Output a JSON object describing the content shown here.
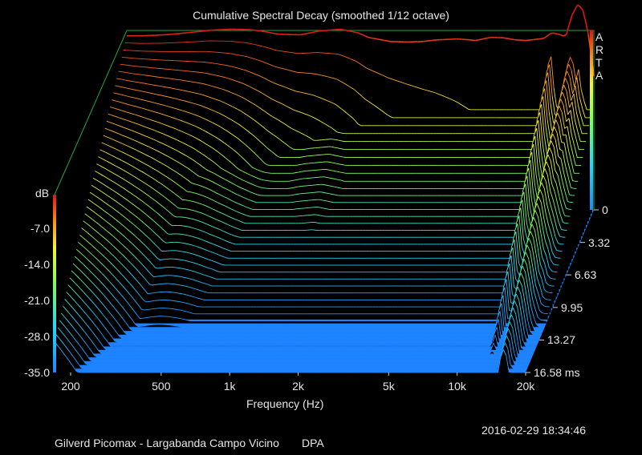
{
  "chart_data": {
    "type": "area",
    "title": "Cumulative Spectral Decay (smoothed 1/12 octave)",
    "xlabel": "Frequency (Hz)",
    "zlabel": "dB",
    "x_scale": "log",
    "x_range_hz": [
      170,
      20000
    ],
    "x_ticks": [
      "200",
      "500",
      "1k",
      "2k",
      "5k",
      "10k",
      "20k"
    ],
    "x_tick_values": [
      200,
      500,
      1000,
      2000,
      5000,
      10000,
      20000
    ],
    "time_ticks": [
      "0",
      "3.32",
      "6.63",
      "9.95",
      "13.27",
      "16.58 ms"
    ],
    "time_tick_values_ms": [
      0,
      3.32,
      6.63,
      9.95,
      13.27,
      16.58
    ],
    "time_range_ms": [
      0,
      16.58
    ],
    "z_ticks": [
      "-7.0",
      "-14.0",
      "-21.0",
      "-28.0",
      "-35.0"
    ],
    "z_tick_values": [
      -7,
      -14,
      -21,
      -28,
      -35
    ],
    "z_range_db": [
      -35,
      0
    ],
    "colormap": [
      "#1e88ff",
      "#22d8ff",
      "#7fff5a",
      "#f5f532",
      "#ff8c1e",
      "#e01414"
    ],
    "floor_color": "#1e82ff",
    "grid": false,
    "initial_response_db": {
      "freq_hz": [
        200,
        250,
        300,
        350,
        400,
        500,
        600,
        700,
        800,
        1000,
        1200,
        1500,
        1800,
        2000,
        2500,
        3000,
        3500,
        4000,
        5000,
        6000,
        7000,
        8000,
        9000,
        10000,
        11000,
        12000,
        13000,
        14000,
        15000,
        16000,
        17000,
        18000,
        19000,
        20000
      ],
      "db": [
        -1.2,
        -1.0,
        -0.7,
        -0.4,
        -0.1,
        0.1,
        0.0,
        -0.4,
        -0.9,
        -1.0,
        -0.3,
        0.1,
        -0.6,
        -1.5,
        -2.3,
        -2.4,
        -2.3,
        -2.0,
        -1.8,
        -2.1,
        -1.5,
        -1.6,
        -2.0,
        -2.1,
        -1.9,
        -1.7,
        -0.6,
        -0.9,
        -1.4,
        2.8,
        5.0,
        3.6,
        -1.5,
        -9.0
      ]
    }
  },
  "arta_label": [
    "A",
    "R",
    "T",
    "A"
  ],
  "footer": {
    "timestamp": "2016-02-29  18:34:46",
    "description": "Gilverd Picomax - Largabanda Campo Vicino",
    "tag": "DPA"
  }
}
